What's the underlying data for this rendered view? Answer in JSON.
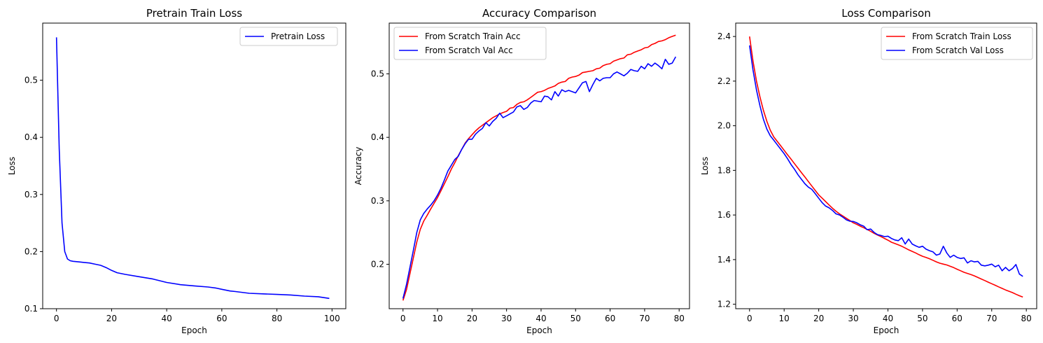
{
  "chart_data": [
    {
      "type": "line",
      "title": "Pretrain Train Loss",
      "xlabel": "Epoch",
      "ylabel": "Loss",
      "xlim": [
        -5,
        105
      ],
      "ylim": [
        0.1,
        0.6
      ],
      "xticks": [
        0,
        20,
        40,
        60,
        80,
        100
      ],
      "xtick_labels": [
        "0",
        "20",
        "40",
        "60",
        "80",
        "100"
      ],
      "yticks": [
        0.1,
        0.2,
        0.3,
        0.4,
        0.5
      ],
      "ytick_labels": [
        "0.1",
        "0.2",
        "0.3",
        "0.4",
        "0.5"
      ],
      "grid": false,
      "legend": "top-right",
      "series": [
        {
          "name": "Pretrain Loss",
          "color": "#0000ff",
          "x": [
            0,
            1,
            2,
            3,
            4,
            5,
            6,
            8,
            10,
            12,
            14,
            16,
            18,
            20,
            22,
            25,
            30,
            35,
            40,
            45,
            50,
            55,
            58,
            60,
            63,
            65,
            70,
            75,
            80,
            85,
            90,
            95,
            99
          ],
          "values": [
            0.575,
            0.38,
            0.25,
            0.2,
            0.187,
            0.184,
            0.183,
            0.182,
            0.181,
            0.18,
            0.178,
            0.176,
            0.172,
            0.167,
            0.163,
            0.16,
            0.156,
            0.152,
            0.146,
            0.142,
            0.14,
            0.138,
            0.136,
            0.134,
            0.131,
            0.13,
            0.127,
            0.126,
            0.125,
            0.124,
            0.122,
            0.121,
            0.118
          ]
        }
      ]
    },
    {
      "type": "line",
      "title": "Accuracy Comparison",
      "xlabel": "Epoch",
      "ylabel": "Accuracy",
      "xlim": [
        -4,
        83
      ],
      "ylim": [
        0.13,
        0.58
      ],
      "xticks": [
        0,
        10,
        20,
        30,
        40,
        50,
        60,
        70,
        80
      ],
      "xtick_labels": [
        "0",
        "10",
        "20",
        "30",
        "40",
        "50",
        "60",
        "70",
        "80"
      ],
      "yticks": [
        0.2,
        0.3,
        0.4,
        0.5
      ],
      "ytick_labels": [
        "0.2",
        "0.3",
        "0.4",
        "0.5"
      ],
      "grid": false,
      "legend": "top-left",
      "series": [
        {
          "name": "From Scratch Train Acc",
          "color": "#ff0000",
          "x": [
            0,
            1,
            2,
            3,
            4,
            5,
            6,
            7,
            8,
            9,
            10,
            11,
            12,
            13,
            14,
            15,
            16,
            17,
            18,
            19,
            20,
            21,
            22,
            23,
            24,
            25,
            26,
            27,
            28,
            29,
            30,
            31,
            32,
            33,
            34,
            35,
            36,
            37,
            38,
            39,
            40,
            41,
            42,
            43,
            44,
            45,
            46,
            47,
            48,
            49,
            50,
            51,
            52,
            53,
            54,
            55,
            56,
            57,
            58,
            59,
            60,
            61,
            62,
            63,
            64,
            65,
            66,
            67,
            68,
            69,
            70,
            71,
            72,
            73,
            74,
            75,
            76,
            77,
            78,
            79
          ],
          "values": [
            0.143,
            0.16,
            0.185,
            0.21,
            0.235,
            0.255,
            0.268,
            0.277,
            0.287,
            0.296,
            0.305,
            0.316,
            0.327,
            0.338,
            0.35,
            0.36,
            0.371,
            0.381,
            0.391,
            0.398,
            0.404,
            0.41,
            0.415,
            0.419,
            0.423,
            0.427,
            0.431,
            0.434,
            0.437,
            0.439,
            0.441,
            0.446,
            0.447,
            0.452,
            0.455,
            0.456,
            0.459,
            0.463,
            0.467,
            0.471,
            0.472,
            0.474,
            0.477,
            0.479,
            0.481,
            0.485,
            0.487,
            0.488,
            0.493,
            0.495,
            0.496,
            0.498,
            0.502,
            0.503,
            0.504,
            0.505,
            0.508,
            0.509,
            0.513,
            0.515,
            0.516,
            0.52,
            0.522,
            0.524,
            0.525,
            0.53,
            0.531,
            0.534,
            0.536,
            0.538,
            0.541,
            0.542,
            0.546,
            0.548,
            0.551,
            0.552,
            0.554,
            0.557,
            0.559,
            0.561
          ]
        },
        {
          "name": "From Scratch Val Acc",
          "color": "#0000ff",
          "x": [
            0,
            1,
            2,
            3,
            4,
            5,
            6,
            7,
            8,
            9,
            10,
            11,
            12,
            13,
            14,
            15,
            16,
            17,
            18,
            19,
            20,
            21,
            22,
            23,
            24,
            25,
            26,
            27,
            28,
            29,
            30,
            31,
            32,
            33,
            34,
            35,
            36,
            37,
            38,
            39,
            40,
            41,
            42,
            43,
            44,
            45,
            46,
            47,
            48,
            49,
            50,
            51,
            52,
            53,
            54,
            55,
            56,
            57,
            58,
            59,
            60,
            61,
            62,
            63,
            64,
            65,
            66,
            67,
            68,
            69,
            70,
            71,
            72,
            73,
            74,
            75,
            76,
            77,
            78,
            79
          ],
          "values": [
            0.146,
            0.168,
            0.195,
            0.222,
            0.25,
            0.27,
            0.28,
            0.287,
            0.293,
            0.3,
            0.309,
            0.32,
            0.333,
            0.347,
            0.356,
            0.365,
            0.37,
            0.381,
            0.39,
            0.397,
            0.397,
            0.405,
            0.41,
            0.414,
            0.423,
            0.418,
            0.425,
            0.43,
            0.438,
            0.431,
            0.434,
            0.437,
            0.44,
            0.448,
            0.45,
            0.444,
            0.447,
            0.454,
            0.458,
            0.457,
            0.456,
            0.465,
            0.464,
            0.459,
            0.472,
            0.465,
            0.475,
            0.472,
            0.474,
            0.472,
            0.47,
            0.478,
            0.486,
            0.488,
            0.472,
            0.483,
            0.493,
            0.489,
            0.493,
            0.494,
            0.494,
            0.5,
            0.503,
            0.5,
            0.497,
            0.501,
            0.507,
            0.505,
            0.504,
            0.512,
            0.508,
            0.516,
            0.512,
            0.517,
            0.513,
            0.508,
            0.523,
            0.515,
            0.517,
            0.527
          ]
        }
      ]
    },
    {
      "type": "line",
      "title": "Loss Comparison",
      "xlabel": "Epoch",
      "ylabel": "Loss",
      "xlim": [
        -4,
        83
      ],
      "ylim": [
        1.18,
        2.46
      ],
      "xticks": [
        0,
        10,
        20,
        30,
        40,
        50,
        60,
        70,
        80
      ],
      "xtick_labels": [
        "0",
        "10",
        "20",
        "30",
        "40",
        "50",
        "60",
        "70",
        "80"
      ],
      "yticks": [
        1.2,
        1.4,
        1.6,
        1.8,
        2.0,
        2.2,
        2.4
      ],
      "ytick_labels": [
        "1.2",
        "1.4",
        "1.6",
        "1.8",
        "2.0",
        "2.2",
        "2.4"
      ],
      "grid": false,
      "legend": "top-right",
      "series": [
        {
          "name": "From Scratch Train Loss",
          "color": "#ff0000",
          "x": [
            0,
            1,
            2,
            3,
            4,
            5,
            6,
            7,
            8,
            9,
            10,
            11,
            12,
            13,
            14,
            15,
            16,
            17,
            18,
            19,
            20,
            21,
            22,
            23,
            24,
            25,
            26,
            27,
            28,
            29,
            30,
            31,
            32,
            33,
            34,
            35,
            36,
            37,
            38,
            39,
            40,
            41,
            42,
            43,
            44,
            45,
            46,
            47,
            48,
            49,
            50,
            51,
            52,
            53,
            54,
            55,
            56,
            57,
            58,
            59,
            60,
            61,
            62,
            63,
            64,
            65,
            66,
            67,
            68,
            69,
            70,
            71,
            72,
            73,
            74,
            75,
            76,
            77,
            78,
            79
          ],
          "values": [
            2.4,
            2.29,
            2.2,
            2.13,
            2.07,
            2.02,
            1.98,
            1.95,
            1.93,
            1.91,
            1.89,
            1.87,
            1.85,
            1.83,
            1.81,
            1.79,
            1.77,
            1.75,
            1.73,
            1.71,
            1.69,
            1.675,
            1.66,
            1.645,
            1.63,
            1.617,
            1.605,
            1.595,
            1.585,
            1.575,
            1.565,
            1.558,
            1.55,
            1.543,
            1.535,
            1.527,
            1.518,
            1.51,
            1.503,
            1.495,
            1.487,
            1.478,
            1.472,
            1.466,
            1.46,
            1.452,
            1.444,
            1.437,
            1.43,
            1.422,
            1.415,
            1.41,
            1.404,
            1.397,
            1.39,
            1.384,
            1.38,
            1.376,
            1.37,
            1.364,
            1.357,
            1.35,
            1.343,
            1.338,
            1.333,
            1.327,
            1.32,
            1.313,
            1.306,
            1.299,
            1.292,
            1.285,
            1.278,
            1.271,
            1.264,
            1.258,
            1.252,
            1.245,
            1.238,
            1.232
          ]
        },
        {
          "name": "From Scratch Val Loss",
          "color": "#0000ff",
          "x": [
            0,
            1,
            2,
            3,
            4,
            5,
            6,
            7,
            8,
            9,
            10,
            11,
            12,
            13,
            14,
            15,
            16,
            17,
            18,
            19,
            20,
            21,
            22,
            23,
            24,
            25,
            26,
            27,
            28,
            29,
            30,
            31,
            32,
            33,
            34,
            35,
            36,
            37,
            38,
            39,
            40,
            41,
            42,
            43,
            44,
            45,
            46,
            47,
            48,
            49,
            50,
            51,
            52,
            53,
            54,
            55,
            56,
            57,
            58,
            59,
            60,
            61,
            62,
            63,
            64,
            65,
            66,
            67,
            68,
            69,
            70,
            71,
            72,
            73,
            74,
            75,
            76,
            77,
            78,
            79
          ],
          "values": [
            2.36,
            2.25,
            2.16,
            2.09,
            2.03,
            1.985,
            1.955,
            1.935,
            1.915,
            1.895,
            1.875,
            1.852,
            1.826,
            1.805,
            1.78,
            1.76,
            1.74,
            1.725,
            1.715,
            1.695,
            1.675,
            1.655,
            1.64,
            1.632,
            1.62,
            1.605,
            1.6,
            1.59,
            1.578,
            1.572,
            1.571,
            1.565,
            1.556,
            1.55,
            1.534,
            1.537,
            1.522,
            1.512,
            1.508,
            1.503,
            1.505,
            1.495,
            1.488,
            1.485,
            1.498,
            1.47,
            1.492,
            1.47,
            1.462,
            1.455,
            1.46,
            1.447,
            1.44,
            1.435,
            1.42,
            1.425,
            1.46,
            1.43,
            1.41,
            1.42,
            1.41,
            1.405,
            1.408,
            1.385,
            1.395,
            1.39,
            1.392,
            1.375,
            1.372,
            1.375,
            1.38,
            1.368,
            1.375,
            1.35,
            1.365,
            1.35,
            1.36,
            1.378,
            1.335,
            1.325
          ]
        }
      ]
    }
  ]
}
